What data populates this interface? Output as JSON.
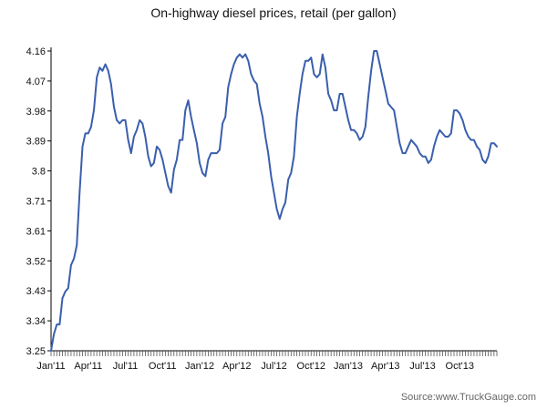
{
  "chart_data": {
    "type": "line",
    "title": "On-highway diesel prices, retail (per gallon)",
    "source": "Source:www.TruckGauge.com",
    "xlabel": "",
    "ylabel": "",
    "yticks": [
      "3.25",
      "3.34",
      "3.43",
      "3.52",
      "3.61",
      "3.71",
      "3.8",
      "3.89",
      "3.98",
      "4.07",
      "4.16"
    ],
    "ylim": [
      3.25,
      4.16
    ],
    "xticks": [
      "Jan'11",
      "Apr'11",
      "Jul'11",
      "Oct'11",
      "Jan'12",
      "Apr'12",
      "Jul'12",
      "Oct'12",
      "Jan'13",
      "Apr'13",
      "Jul'13",
      "Oct'13"
    ],
    "grid": false,
    "legend": "none",
    "line_color": "#3a5fad",
    "series": [
      {
        "x_unit": "week",
        "values": [
          3.25,
          3.3,
          3.33,
          3.33,
          3.41,
          3.43,
          3.44,
          3.51,
          3.53,
          3.57,
          3.73,
          3.87,
          3.91,
          3.91,
          3.93,
          3.98,
          4.08,
          4.11,
          4.1,
          4.12,
          4.1,
          4.06,
          3.99,
          3.95,
          3.94,
          3.95,
          3.95,
          3.89,
          3.85,
          3.9,
          3.92,
          3.95,
          3.94,
          3.9,
          3.84,
          3.81,
          3.82,
          3.87,
          3.86,
          3.83,
          3.79,
          3.75,
          3.73,
          3.8,
          3.83,
          3.89,
          3.89,
          3.98,
          4.01,
          3.96,
          3.92,
          3.88,
          3.82,
          3.79,
          3.78,
          3.83,
          3.85,
          3.85,
          3.85,
          3.86,
          3.94,
          3.96,
          4.05,
          4.09,
          4.12,
          4.14,
          4.15,
          4.14,
          4.15,
          4.13,
          4.09,
          4.07,
          4.06,
          4.0,
          3.96,
          3.9,
          3.85,
          3.78,
          3.73,
          3.68,
          3.65,
          3.68,
          3.7,
          3.77,
          3.79,
          3.84,
          3.96,
          4.03,
          4.09,
          4.13,
          4.13,
          4.14,
          4.09,
          4.08,
          4.09,
          4.15,
          4.11,
          4.03,
          4.01,
          3.98,
          3.98,
          4.03,
          4.03,
          3.99,
          3.95,
          3.92,
          3.92,
          3.91,
          3.89,
          3.9,
          3.93,
          4.02,
          4.1,
          4.16,
          4.16,
          4.12,
          4.08,
          4.04,
          4.0,
          3.99,
          3.98,
          3.93,
          3.88,
          3.85,
          3.85,
          3.87,
          3.89,
          3.88,
          3.87,
          3.85,
          3.84,
          3.84,
          3.82,
          3.83,
          3.87,
          3.9,
          3.92,
          3.91,
          3.9,
          3.9,
          3.91,
          3.98,
          3.98,
          3.97,
          3.95,
          3.92,
          3.9,
          3.89,
          3.89,
          3.87,
          3.86,
          3.83,
          3.82,
          3.84,
          3.88,
          3.88,
          3.87
        ]
      }
    ]
  }
}
